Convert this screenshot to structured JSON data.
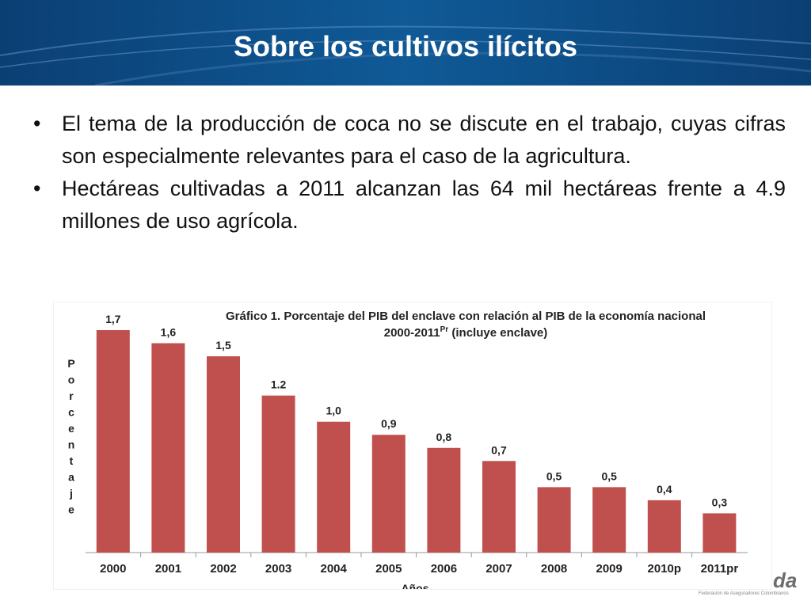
{
  "slide": {
    "title": "Sobre los cultivos ilícitos",
    "bullet_char": "•",
    "bullets": [
      "El tema de la producción de coca no se discute en el trabajo, cuyas cifras son especialmente relevantes para el caso de la agricultura.",
      "Hectáreas cultivadas a 2011 alcanzan las 64 mil hectáreas frente a 4.9 millones de uso agrícola."
    ]
  },
  "logo": {
    "mark": "da",
    "caption": "Federación de Aseguradores Colombianos"
  },
  "chart_data": {
    "type": "bar",
    "title_line1": "Gráfico 1. Porcentaje del PIB del enclave con relación al PIB de la economía nacional",
    "title_line2_main": "2000-2011",
    "title_line2_sup": "Pr",
    "title_line2_rest": " (incluye enclave)",
    "ylabel": "Porcentaje",
    "xlabel": "Años",
    "categories": [
      "2000",
      "2001",
      "2002",
      "2003",
      "2004",
      "2005",
      "2006",
      "2007",
      "2008",
      "2009",
      "2010p",
      "2011pr"
    ],
    "values": [
      1.7,
      1.6,
      1.5,
      1.2,
      1.0,
      0.9,
      0.8,
      0.7,
      0.5,
      0.5,
      0.4,
      0.3
    ],
    "data_labels": [
      "1,7",
      "1,6",
      "1,5",
      "1.2",
      "1,0",
      "0,9",
      "0,8",
      "0,7",
      "0,5",
      "0,5",
      "0,4",
      "0,3"
    ],
    "bar_color": "#c0504d",
    "grid": false,
    "legend": "none"
  }
}
